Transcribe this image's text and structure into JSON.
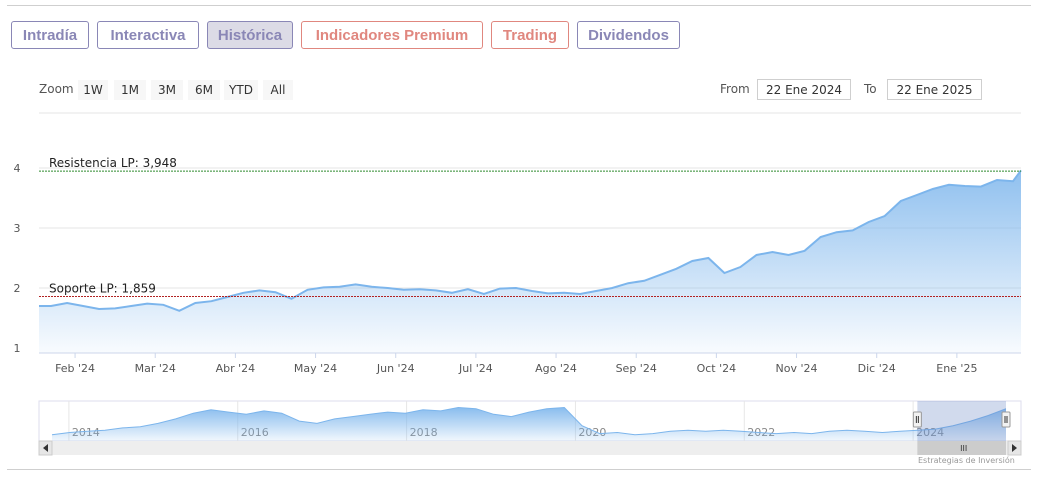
{
  "tabs": [
    {
      "label": "Intradía",
      "style": "purple"
    },
    {
      "label": "Interactiva",
      "style": "purple"
    },
    {
      "label": "Histórica",
      "style": "active"
    },
    {
      "label": "Indicadores Premium",
      "style": "red"
    },
    {
      "label": "Trading",
      "style": "red"
    },
    {
      "label": "Dividendos",
      "style": "purple"
    }
  ],
  "zoom": {
    "label": "Zoom",
    "buttons": [
      "1W",
      "1M",
      "3M",
      "6M",
      "YTD",
      "All"
    ]
  },
  "range": {
    "from_label": "From",
    "from_value": "22 Ene 2024",
    "to_label": "To",
    "to_value": "22 Ene 2025"
  },
  "resistance_label": "Resistencia LP: 3,948",
  "support_label": "Soporte LP: 1,859",
  "credit": "Estrategias de Inversión",
  "colors": {
    "line": "#7cb5ec",
    "resistance": "#2e8b2e",
    "support": "#b22222",
    "accent_purple": "#8a87b6",
    "accent_red": "#e0877f"
  },
  "chart_data": {
    "type": "area",
    "y_ticks": [
      "1",
      "2",
      "3",
      "4"
    ],
    "ylim": [
      1,
      4.1
    ],
    "x_tick_labels": [
      "Feb '24",
      "Mar '24",
      "Abr '24",
      "May '24",
      "Jun '24",
      "Jul '24",
      "Ago '24",
      "Sep '24",
      "Oct '24",
      "Nov '24",
      "Dic '24",
      "Ene '25"
    ],
    "x_tick_months": [
      1,
      2,
      3,
      4,
      5,
      6,
      7,
      8,
      9,
      10,
      11,
      12
    ],
    "resistance": 3.948,
    "support": 1.859,
    "series": [
      {
        "month_index": [
          0.7,
          0.9,
          1.1,
          1.3,
          1.5,
          1.7,
          1.9,
          2.1,
          2.3,
          2.5,
          2.7,
          2.9,
          3.1,
          3.3,
          3.5,
          3.7,
          3.9,
          4.1,
          4.3,
          4.5,
          4.7,
          4.9,
          5.1,
          5.3,
          5.5,
          5.7,
          5.9,
          6.1,
          6.3,
          6.5,
          6.7,
          6.9,
          7.1,
          7.3,
          7.5,
          7.7,
          7.9,
          8.1,
          8.3,
          8.5,
          8.7,
          8.9,
          9.1,
          9.3,
          9.5,
          9.7,
          9.9,
          10.1,
          10.3,
          10.5,
          10.7,
          10.9,
          11.1,
          11.3,
          11.5,
          11.7,
          11.9,
          12.1,
          12.3,
          12.5,
          12.7,
          12.8
        ],
        "values": [
          1.7,
          1.75,
          1.7,
          1.65,
          1.66,
          1.7,
          1.74,
          1.72,
          1.62,
          1.75,
          1.78,
          1.85,
          1.92,
          1.96,
          1.93,
          1.82,
          1.97,
          2.01,
          2.02,
          2.06,
          2.02,
          2.0,
          1.97,
          1.98,
          1.96,
          1.92,
          1.98,
          1.9,
          1.99,
          2.0,
          1.95,
          1.91,
          1.92,
          1.9,
          1.95,
          2.0,
          2.08,
          2.12,
          2.22,
          2.32,
          2.45,
          2.5,
          2.25,
          2.35,
          2.55,
          2.6,
          2.55,
          2.62,
          2.85,
          2.93,
          2.96,
          3.1,
          3.2,
          3.45,
          3.55,
          3.65,
          3.72,
          3.7,
          3.69,
          3.8,
          3.78,
          3.96
        ]
      }
    ],
    "navigator": {
      "year_labels": [
        "2014",
        "2016",
        "2018",
        "2020",
        "2022",
        "2024"
      ],
      "year_positions": [
        0,
        2,
        4,
        6,
        8,
        10
      ],
      "x_range": [
        -0.2,
        11.1
      ],
      "values": [
        1.2,
        1.4,
        1.5,
        1.6,
        1.8,
        1.9,
        2.2,
        2.6,
        3.1,
        3.4,
        3.2,
        3.0,
        3.3,
        3.1,
        2.4,
        2.2,
        2.6,
        2.8,
        3.0,
        3.2,
        3.1,
        3.4,
        3.3,
        3.6,
        3.5,
        3.0,
        2.8,
        3.2,
        3.5,
        3.6,
        2.0,
        1.3,
        1.4,
        1.2,
        1.3,
        1.5,
        1.6,
        1.5,
        1.6,
        1.5,
        1.4,
        1.3,
        1.4,
        1.3,
        1.5,
        1.6,
        1.5,
        1.4,
        1.5,
        1.6,
        1.7,
        2.0,
        2.4,
        2.9,
        3.5
      ],
      "window_start": 10.05,
      "window_end": 11.1
    }
  }
}
